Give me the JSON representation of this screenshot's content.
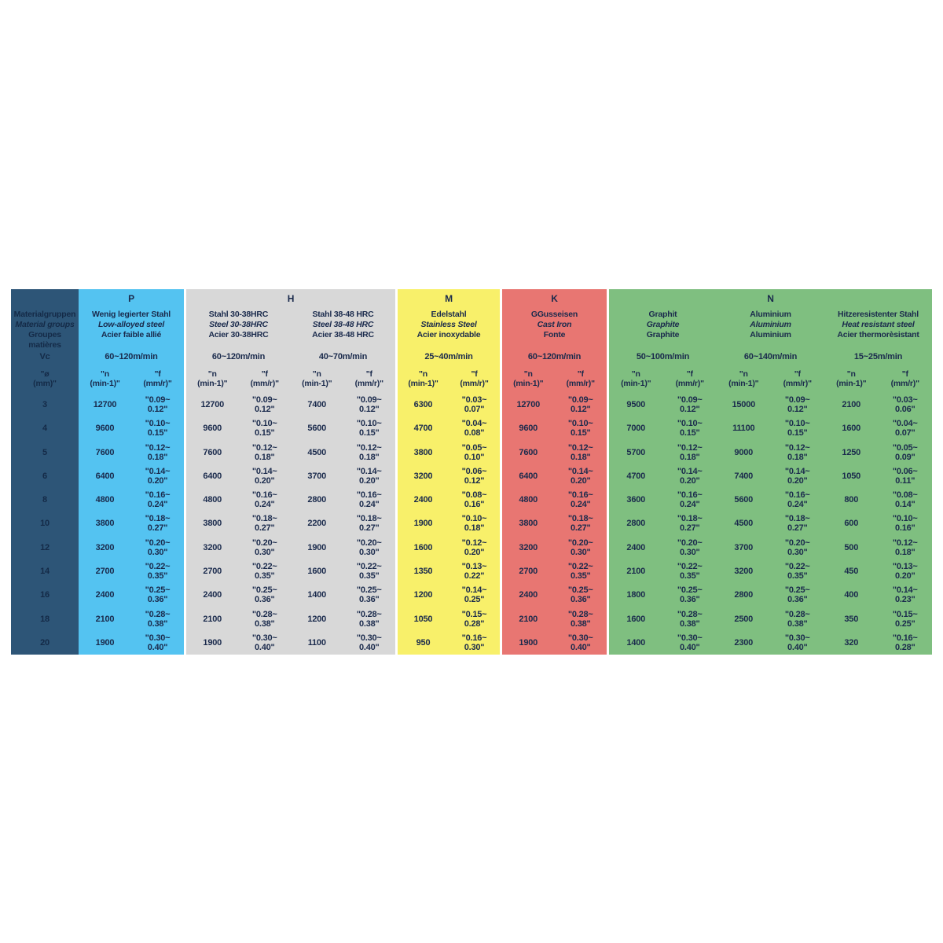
{
  "left_column": {
    "bg": "#2D5577",
    "material_group_lines": [
      "Materialgruppen",
      "Material groups",
      "Groupes matières"
    ],
    "vc_label": "Vc",
    "dia_line1": "\"ø",
    "dia_line2": "(mm)\"",
    "diameters": [
      "3",
      "4",
      "5",
      "6",
      "8",
      "10",
      "12",
      "14",
      "16",
      "18",
      "20"
    ]
  },
  "nf_header": {
    "n1": "\"n",
    "n2": "(min-1)\"",
    "f1": "\"f",
    "f2": "(mm/r)\""
  },
  "groups": [
    {
      "letter": "P",
      "color": "#54C3F1",
      "materials": [
        {
          "names": [
            "Wenig legierter Stahl",
            "Low-alloyed steel",
            "Acier faible allié"
          ],
          "vc": "60~120m/min",
          "rows": [
            {
              "n": "12700",
              "f1": "\"0.09~",
              "f2": "0.12\""
            },
            {
              "n": "9600",
              "f1": "\"0.10~",
              "f2": "0.15\""
            },
            {
              "n": "7600",
              "f1": "\"0.12~",
              "f2": "0.18\""
            },
            {
              "n": "6400",
              "f1": "\"0.14~",
              "f2": "0.20\""
            },
            {
              "n": "4800",
              "f1": "\"0.16~",
              "f2": "0.24\""
            },
            {
              "n": "3800",
              "f1": "\"0.18~",
              "f2": "0.27\""
            },
            {
              "n": "3200",
              "f1": "\"0.20~",
              "f2": "0.30\""
            },
            {
              "n": "2700",
              "f1": "\"0.22~",
              "f2": "0.35\""
            },
            {
              "n": "2400",
              "f1": "\"0.25~",
              "f2": "0.36\""
            },
            {
              "n": "2100",
              "f1": "\"0.28~",
              "f2": "0.38\""
            },
            {
              "n": "1900",
              "f1": "\"0.30~",
              "f2": "0.40\""
            }
          ]
        }
      ]
    },
    {
      "letter": "H",
      "color": "#D8D8D8",
      "materials": [
        {
          "names": [
            "Stahl 30-38HRC",
            "Steel 30-38HRC",
            "Acier 30-38HRC"
          ],
          "vc": "60~120m/min",
          "rows": [
            {
              "n": "12700",
              "f1": "\"0.09~",
              "f2": "0.12\""
            },
            {
              "n": "9600",
              "f1": "\"0.10~",
              "f2": "0.15\""
            },
            {
              "n": "7600",
              "f1": "\"0.12~",
              "f2": "0.18\""
            },
            {
              "n": "6400",
              "f1": "\"0.14~",
              "f2": "0.20\""
            },
            {
              "n": "4800",
              "f1": "\"0.16~",
              "f2": "0.24\""
            },
            {
              "n": "3800",
              "f1": "\"0.18~",
              "f2": "0.27\""
            },
            {
              "n": "3200",
              "f1": "\"0.20~",
              "f2": "0.30\""
            },
            {
              "n": "2700",
              "f1": "\"0.22~",
              "f2": "0.35\""
            },
            {
              "n": "2400",
              "f1": "\"0.25~",
              "f2": "0.36\""
            },
            {
              "n": "2100",
              "f1": "\"0.28~",
              "f2": "0.38\""
            },
            {
              "n": "1900",
              "f1": "\"0.30~",
              "f2": "0.40\""
            }
          ]
        },
        {
          "names": [
            "Stahl 38-48 HRC",
            "Steel 38-48 HRC",
            "Acier 38-48 HRC"
          ],
          "vc": "40~70m/min",
          "rows": [
            {
              "n": "7400",
              "f1": "\"0.09~",
              "f2": "0.12\""
            },
            {
              "n": "5600",
              "f1": "\"0.10~",
              "f2": "0.15\""
            },
            {
              "n": "4500",
              "f1": "\"0.12~",
              "f2": "0.18\""
            },
            {
              "n": "3700",
              "f1": "\"0.14~",
              "f2": "0.20\""
            },
            {
              "n": "2800",
              "f1": "\"0.16~",
              "f2": "0.24\""
            },
            {
              "n": "2200",
              "f1": "\"0.18~",
              "f2": "0.27\""
            },
            {
              "n": "1900",
              "f1": "\"0.20~",
              "f2": "0.30\""
            },
            {
              "n": "1600",
              "f1": "\"0.22~",
              "f2": "0.35\""
            },
            {
              "n": "1400",
              "f1": "\"0.25~",
              "f2": "0.36\""
            },
            {
              "n": "1200",
              "f1": "\"0.28~",
              "f2": "0.38\""
            },
            {
              "n": "1100",
              "f1": "\"0.30~",
              "f2": "0.40\""
            }
          ]
        }
      ]
    },
    {
      "letter": "M",
      "color": "#F8F06A",
      "materials": [
        {
          "names": [
            "Edelstahl",
            "Stainless Steel",
            "Acier inoxydable"
          ],
          "vc": "25~40m/min",
          "rows": [
            {
              "n": "6300",
              "f1": "\"0.03~",
              "f2": "0.07\""
            },
            {
              "n": "4700",
              "f1": "\"0.04~",
              "f2": "0.08\""
            },
            {
              "n": "3800",
              "f1": "\"0.05~",
              "f2": "0.10\""
            },
            {
              "n": "3200",
              "f1": "\"0.06~",
              "f2": "0.12\""
            },
            {
              "n": "2400",
              "f1": "\"0.08~",
              "f2": "0.16\""
            },
            {
              "n": "1900",
              "f1": "\"0.10~",
              "f2": "0.18\""
            },
            {
              "n": "1600",
              "f1": "\"0.12~",
              "f2": "0.20\""
            },
            {
              "n": "1350",
              "f1": "\"0.13~",
              "f2": "0.22\""
            },
            {
              "n": "1200",
              "f1": "\"0.14~",
              "f2": "0.25\""
            },
            {
              "n": "1050",
              "f1": "\"0.15~",
              "f2": "0.28\""
            },
            {
              "n": "950",
              "f1": "\"0.16~",
              "f2": "0.30\""
            }
          ]
        }
      ]
    },
    {
      "letter": "K",
      "color": "#E87672",
      "materials": [
        {
          "names": [
            "GGusseisen",
            "Cast Iron",
            "Fonte"
          ],
          "vc": "60~120m/min",
          "rows": [
            {
              "n": "12700",
              "f1": "\"0.09~",
              "f2": "0.12\""
            },
            {
              "n": "9600",
              "f1": "\"0.10~",
              "f2": "0.15\""
            },
            {
              "n": "7600",
              "f1": "\"0.12~",
              "f2": "0.18\""
            },
            {
              "n": "6400",
              "f1": "\"0.14~",
              "f2": "0.20\""
            },
            {
              "n": "4800",
              "f1": "\"0.16~",
              "f2": "0.24\""
            },
            {
              "n": "3800",
              "f1": "\"0.18~",
              "f2": "0.27\""
            },
            {
              "n": "3200",
              "f1": "\"0.20~",
              "f2": "0.30\""
            },
            {
              "n": "2700",
              "f1": "\"0.22~",
              "f2": "0.35\""
            },
            {
              "n": "2400",
              "f1": "\"0.25~",
              "f2": "0.36\""
            },
            {
              "n": "2100",
              "f1": "\"0.28~",
              "f2": "0.38\""
            },
            {
              "n": "1900",
              "f1": "\"0.30~",
              "f2": "0.40\""
            }
          ]
        }
      ]
    },
    {
      "letter": "N",
      "color": "#7FBF80",
      "materials": [
        {
          "names": [
            "Graphit",
            "Graphite",
            "Graphite"
          ],
          "vc": "50~100m/min",
          "rows": [
            {
              "n": "9500",
              "f1": "\"0.09~",
              "f2": "0.12\""
            },
            {
              "n": "7000",
              "f1": "\"0.10~",
              "f2": "0.15\""
            },
            {
              "n": "5700",
              "f1": "\"0.12~",
              "f2": "0.18\""
            },
            {
              "n": "4700",
              "f1": "\"0.14~",
              "f2": "0.20\""
            },
            {
              "n": "3600",
              "f1": "\"0.16~",
              "f2": "0.24\""
            },
            {
              "n": "2800",
              "f1": "\"0.18~",
              "f2": "0.27\""
            },
            {
              "n": "2400",
              "f1": "\"0.20~",
              "f2": "0.30\""
            },
            {
              "n": "2100",
              "f1": "\"0.22~",
              "f2": "0.35\""
            },
            {
              "n": "1800",
              "f1": "\"0.25~",
              "f2": "0.36\""
            },
            {
              "n": "1600",
              "f1": "\"0.28~",
              "f2": "0.38\""
            },
            {
              "n": "1400",
              "f1": "\"0.30~",
              "f2": "0.40\""
            }
          ]
        },
        {
          "names": [
            "Aluminium",
            "Aluminium",
            "Aluminium"
          ],
          "vc": "60~140m/min",
          "rows": [
            {
              "n": "15000",
              "f1": "\"0.09~",
              "f2": "0.12\""
            },
            {
              "n": "11100",
              "f1": "\"0.10~",
              "f2": "0.15\""
            },
            {
              "n": "9000",
              "f1": "\"0.12~",
              "f2": "0.18\""
            },
            {
              "n": "7400",
              "f1": "\"0.14~",
              "f2": "0.20\""
            },
            {
              "n": "5600",
              "f1": "\"0.16~",
              "f2": "0.24\""
            },
            {
              "n": "4500",
              "f1": "\"0.18~",
              "f2": "0.27\""
            },
            {
              "n": "3700",
              "f1": "\"0.20~",
              "f2": "0.30\""
            },
            {
              "n": "3200",
              "f1": "\"0.22~",
              "f2": "0.35\""
            },
            {
              "n": "2800",
              "f1": "\"0.25~",
              "f2": "0.36\""
            },
            {
              "n": "2500",
              "f1": "\"0.28~",
              "f2": "0.38\""
            },
            {
              "n": "2300",
              "f1": "\"0.30~",
              "f2": "0.40\""
            }
          ]
        },
        {
          "names": [
            "Hitzeresistenter Stahl",
            "Heat resistant steel",
            "Acier thermorèsistant"
          ],
          "vc": "15~25m/min",
          "rows": [
            {
              "n": "2100",
              "f1": "\"0.03~",
              "f2": "0.06\""
            },
            {
              "n": "1600",
              "f1": "\"0.04~",
              "f2": "0.07\""
            },
            {
              "n": "1250",
              "f1": "\"0.05~",
              "f2": "0.09\""
            },
            {
              "n": "1050",
              "f1": "\"0.06~",
              "f2": "0.11\""
            },
            {
              "n": "800",
              "f1": "\"0.08~",
              "f2": "0.14\""
            },
            {
              "n": "600",
              "f1": "\"0.10~",
              "f2": "0.16\""
            },
            {
              "n": "500",
              "f1": "\"0.12~",
              "f2": "0.18\""
            },
            {
              "n": "450",
              "f1": "\"0.13~",
              "f2": "0.20\""
            },
            {
              "n": "400",
              "f1": "\"0.14~",
              "f2": "0.23\""
            },
            {
              "n": "350",
              "f1": "\"0.15~",
              "f2": "0.25\""
            },
            {
              "n": "320",
              "f1": "\"0.16~",
              "f2": "0.28\""
            }
          ]
        }
      ]
    }
  ]
}
